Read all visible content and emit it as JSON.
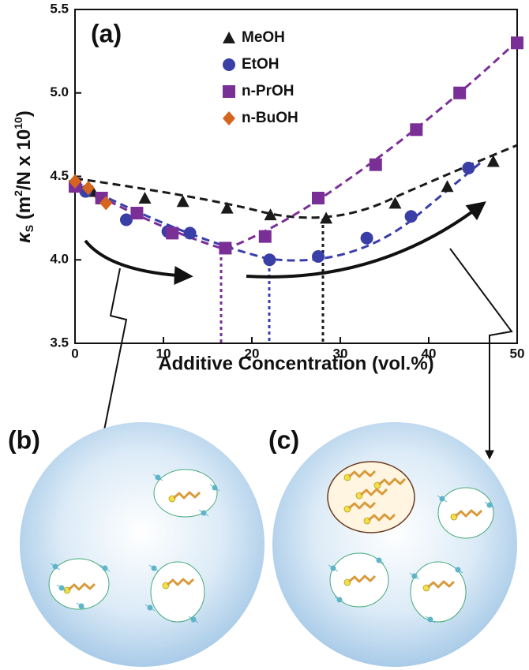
{
  "chart_data": {
    "type": "scatter",
    "panel_label": "(a)",
    "x_label": "Additive Concentration (vol.%)",
    "y_label": [
      "κ",
      "S",
      " (m",
      "2",
      "/N x 10",
      "10",
      ")"
    ],
    "xlim": [
      0,
      50
    ],
    "xticks": [
      0,
      10,
      20,
      30,
      40,
      50
    ],
    "ylim": [
      3.5,
      5.5
    ],
    "yticks": [
      3.5,
      {
        "value": 4,
        "label": "4.0"
      },
      4.5,
      {
        "value": 5,
        "label": "5.0"
      },
      5.5
    ],
    "series": [
      {
        "name": "MeOH",
        "color": "#1a1a1a",
        "marker": "triangle",
        "x": [
          0,
          2,
          7.9,
          12.2,
          17.2,
          22.1,
          28.4,
          36.2,
          42.1,
          47.3
        ],
        "values": [
          4.48,
          4.41,
          4.37,
          4.35,
          4.31,
          4.27,
          4.25,
          4.34,
          4.44,
          4.59
        ]
      },
      {
        "name": "EtOH",
        "color": "#3a3fa8",
        "marker": "circle",
        "x": [
          0,
          1.2,
          5.8,
          10.5,
          13,
          22,
          27.5,
          33,
          38,
          44.5
        ],
        "values": [
          4.45,
          4.41,
          4.24,
          4.17,
          4.16,
          4.0,
          4.02,
          4.13,
          4.26,
          4.55
        ]
      },
      {
        "name": "n-PrOH",
        "color": "#7a2f96",
        "marker": "square",
        "x": [
          0,
          3,
          7,
          11,
          17,
          21.5,
          27.5,
          34,
          38.6,
          43.5,
          50
        ],
        "values": [
          4.44,
          4.37,
          4.28,
          4.16,
          4.07,
          4.14,
          4.37,
          4.57,
          4.78,
          5.0,
          5.3
        ]
      },
      {
        "name": "n-BuOH",
        "color": "#d5651e",
        "marker": "diamond",
        "x": [
          0,
          1.5,
          3.5
        ],
        "values": [
          4.47,
          4.43,
          4.34
        ]
      }
    ]
  },
  "illustrations": {
    "left_label": "(b)",
    "right_label": "(c)"
  }
}
